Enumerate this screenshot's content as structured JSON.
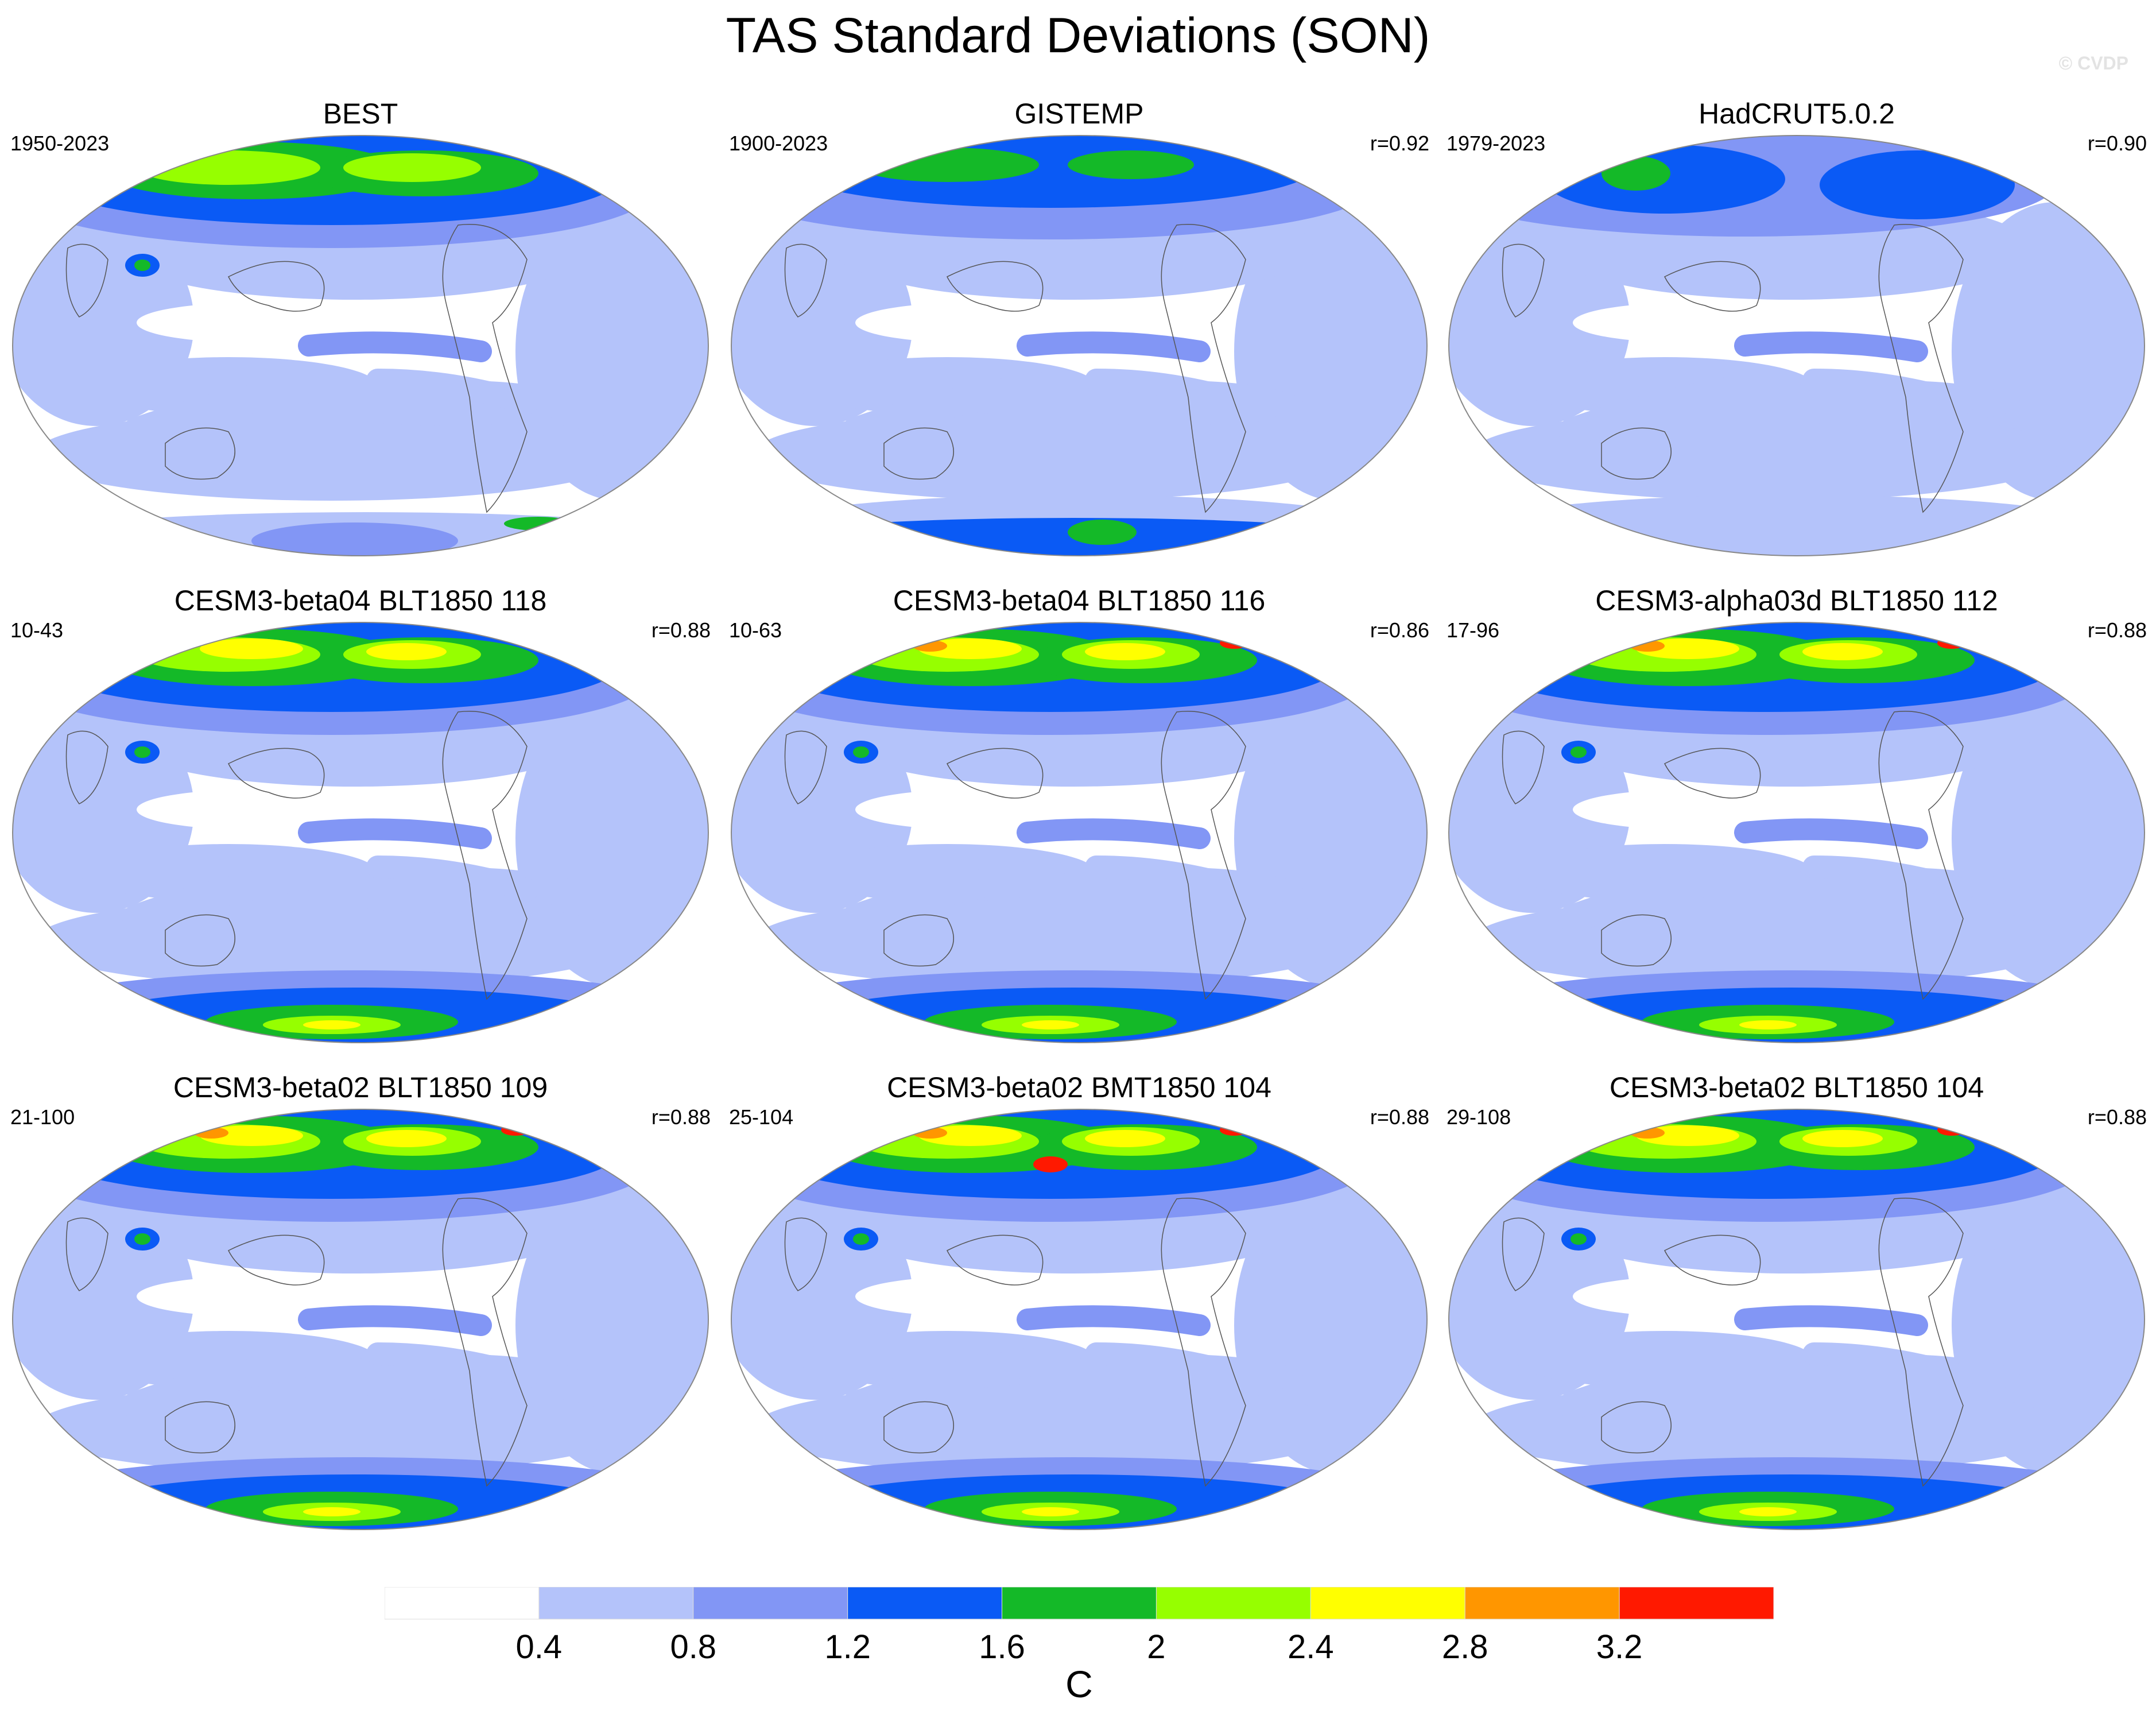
{
  "title": "TAS Standard Deviations (SON)",
  "watermark": "© CVDP",
  "panels": [
    {
      "title": "BEST",
      "period": "1950-2023",
      "r": "",
      "style": 0
    },
    {
      "title": "GISTEMP",
      "period": "1900-2023",
      "r": "r=0.92",
      "style": 1
    },
    {
      "title": "HadCRUT5.0.2",
      "period": "1979-2023",
      "r": "r=0.90",
      "style": 2
    },
    {
      "title": "CESM3-beta04 BLT1850 118",
      "period": "10-43",
      "r": "r=0.88",
      "style": 3
    },
    {
      "title": "CESM3-beta04 BLT1850 116",
      "period": "10-63",
      "r": "r=0.86",
      "style": 4
    },
    {
      "title": "CESM3-alpha03d BLT1850 112",
      "period": "17-96",
      "r": "r=0.88",
      "style": 4
    },
    {
      "title": "CESM3-beta02 BLT1850 109",
      "period": "21-100",
      "r": "r=0.88",
      "style": 4
    },
    {
      "title": "CESM3-beta02 BMT1850 104",
      "period": "25-104",
      "r": "r=0.88",
      "style": 5
    },
    {
      "title": "CESM3-beta02 BLT1850 104",
      "period": "29-108",
      "r": "r=0.88",
      "style": 4
    }
  ],
  "colorbar": {
    "colors": [
      "#ffffff",
      "#b4c3fa",
      "#8296f5",
      "#0a5af5",
      "#14b928",
      "#96ff00",
      "#ffff00",
      "#ff9600",
      "#ff1900"
    ],
    "ticks": [
      "0.4",
      "0.8",
      "1.2",
      "1.6",
      "2",
      "2.4",
      "2.8",
      "3.2"
    ],
    "unit": "C"
  }
}
